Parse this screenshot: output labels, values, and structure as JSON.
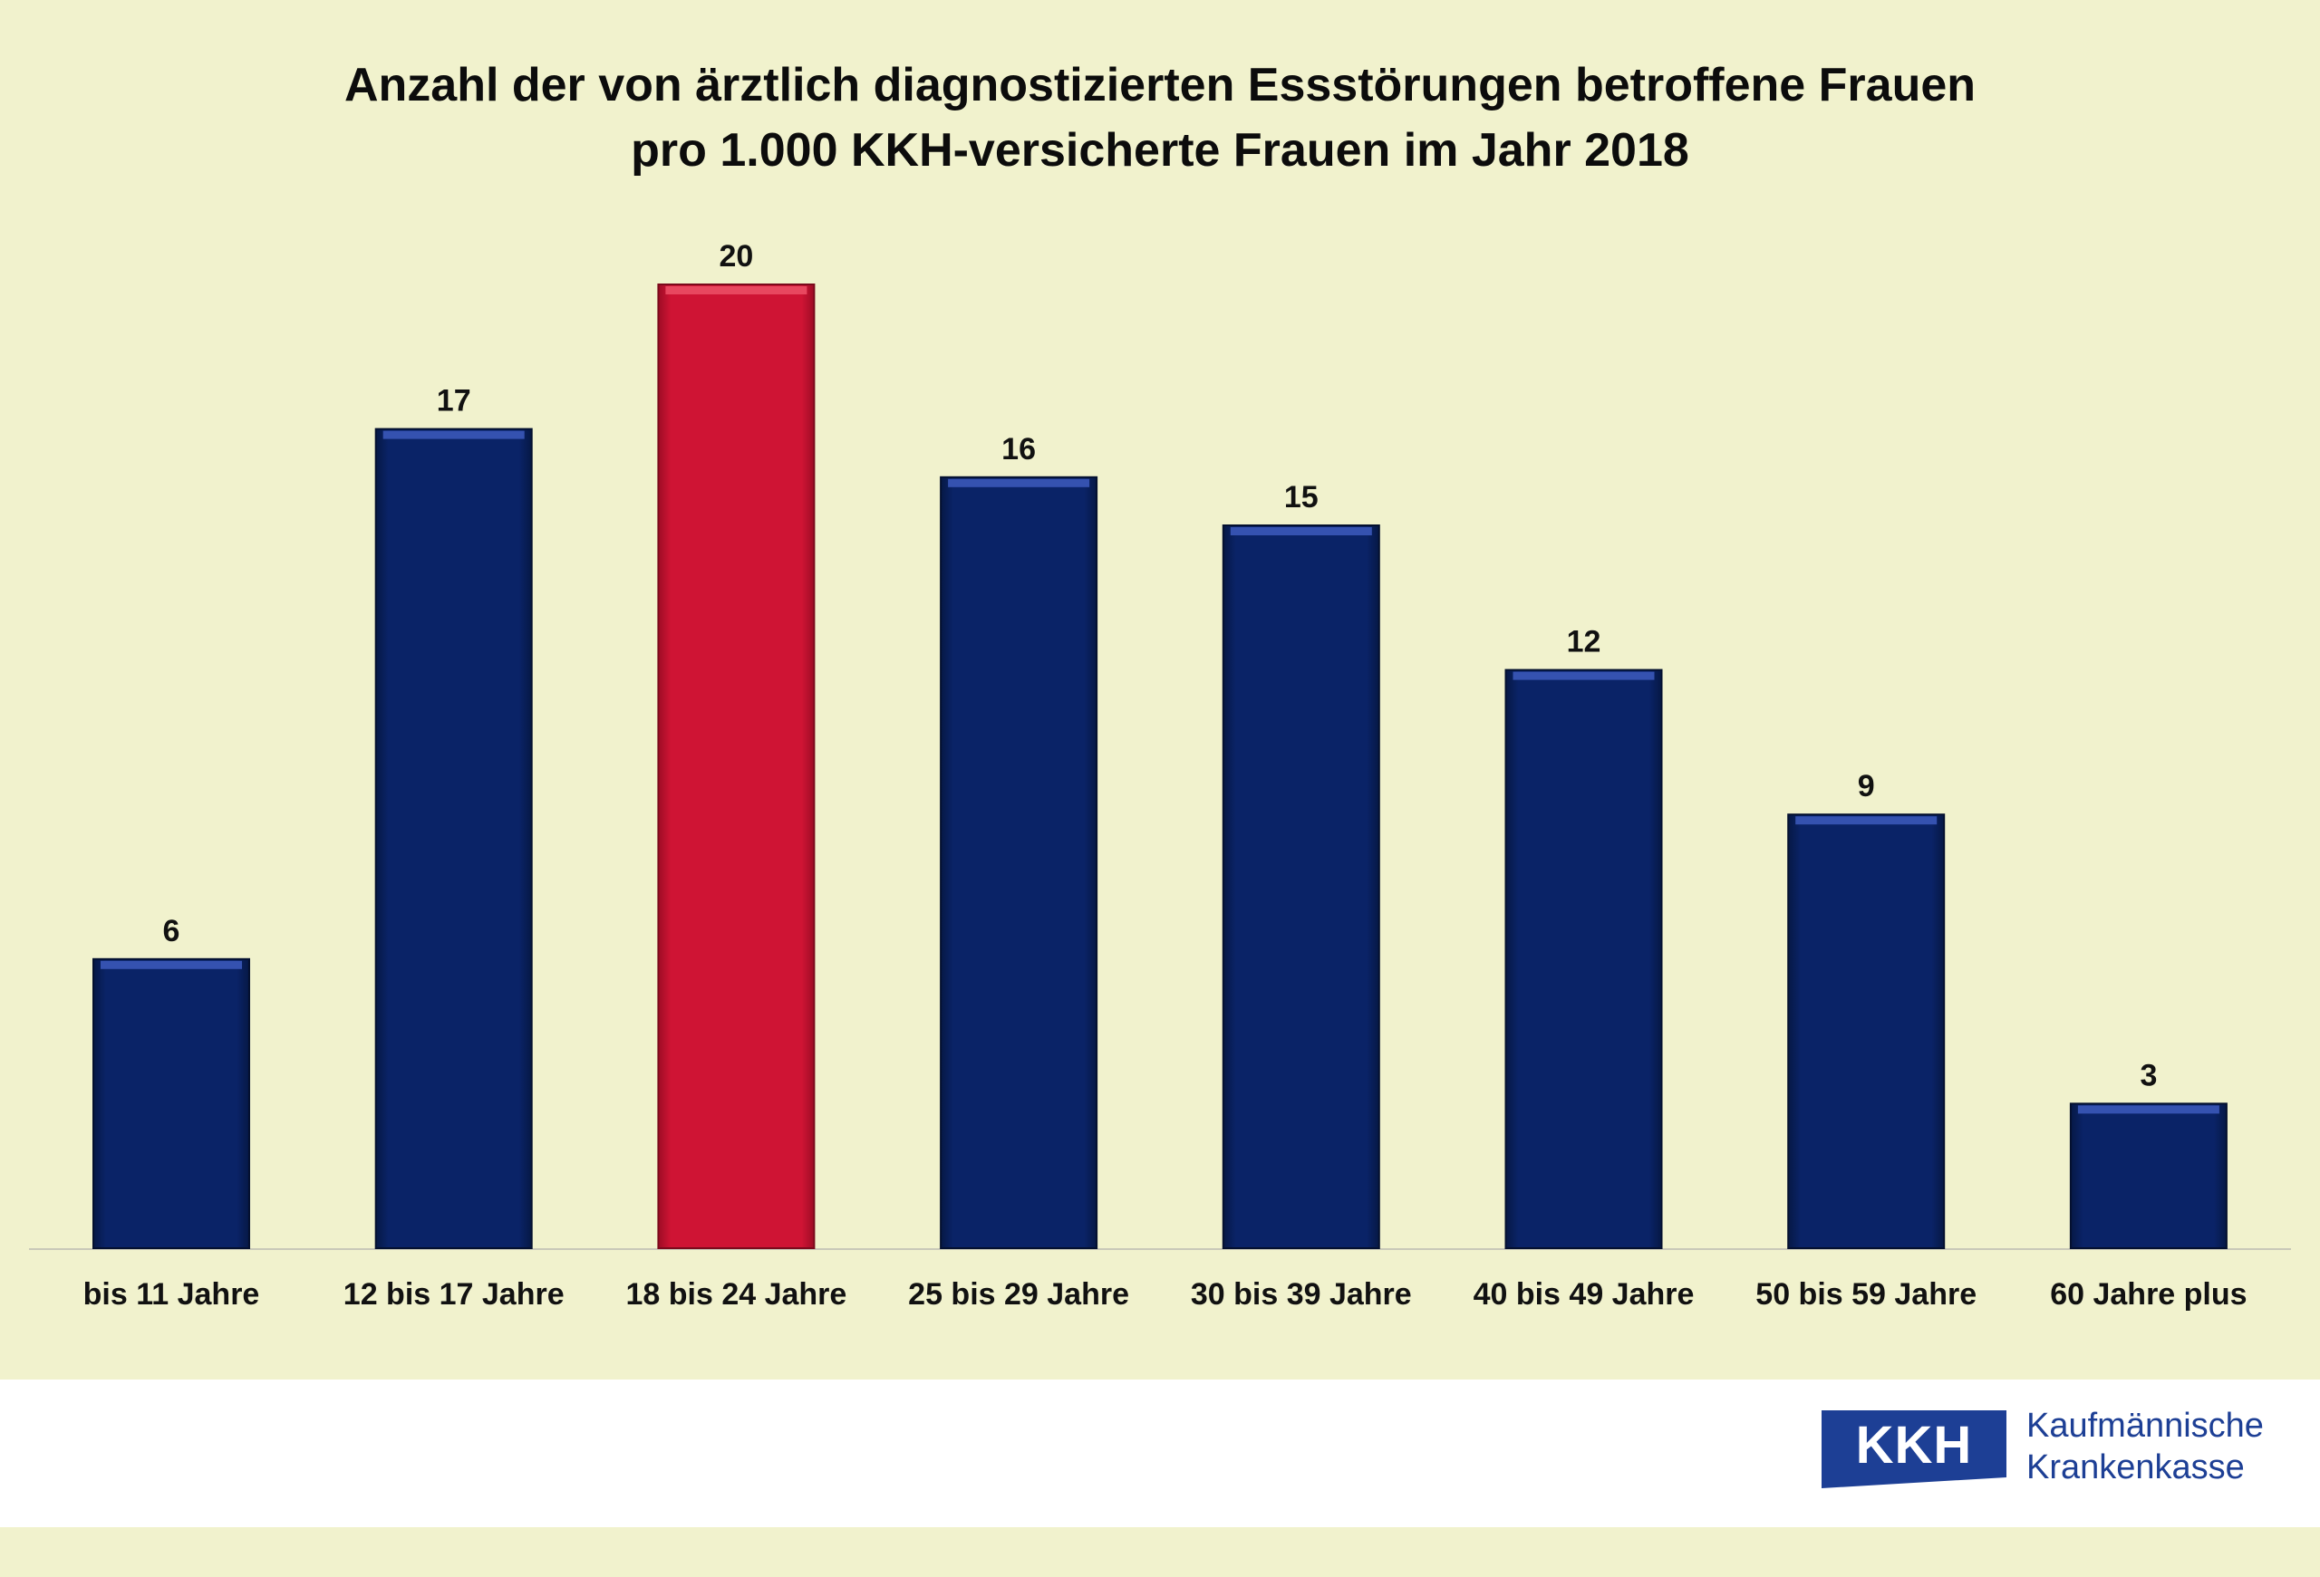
{
  "chart_data": {
    "type": "bar",
    "title_lines": [
      "Anzahl der von ärztlich diagnostizierten Essstörungen betroffene Frauen",
      "pro 1.000 KKH-versicherte Frauen im Jahr 2018"
    ],
    "categories": [
      "bis 11 Jahre",
      "12 bis 17 Jahre",
      "18 bis 24 Jahre",
      "25 bis 29 Jahre",
      "30 bis 39 Jahre",
      "40 bis 49 Jahre",
      "50 bis 59 Jahre",
      "60 Jahre plus"
    ],
    "series": [
      {
        "name": "Frauen pro 1.000",
        "values": [
          6,
          17,
          20,
          16,
          15,
          12,
          9,
          3
        ]
      }
    ],
    "highlight_index": 2,
    "ylim": [
      0,
      20
    ],
    "grid": false,
    "colors": {
      "bar": "#0a2367",
      "highlight": "#cf1434",
      "bar_top": "#3552b0",
      "highlight_top": "#e8475f"
    }
  },
  "footer": {
    "logo_text": "KKH",
    "company_line1": "Kaufmännische",
    "company_line2": "Krankenkasse",
    "brand_color": "#1d3f95"
  }
}
